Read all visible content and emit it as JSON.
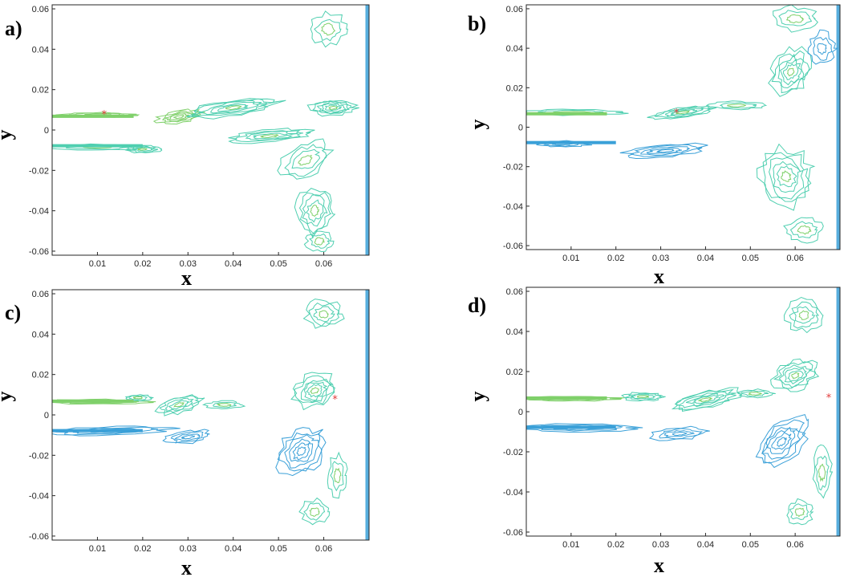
{
  "chart_data": [
    {
      "type": "contour",
      "panel_label": "a)",
      "xlabel": "x",
      "ylabel": "y",
      "xlim": [
        0.0,
        0.07
      ],
      "ylim": [
        -0.062,
        0.062
      ],
      "xticks": [
        "0.01",
        "0.02",
        "0.03",
        "0.04",
        "0.05",
        "0.06"
      ],
      "yticks": [
        "0.06",
        "0.04",
        "0.02",
        "0",
        "-0.02",
        "-0.04",
        "-0.06"
      ],
      "marker": {
        "x": 0.0115,
        "y": 0.0075,
        "color": "#e23a3a"
      },
      "colors": [
        "#4fcfb0",
        "#3aa0d8",
        "#7fd06a",
        "#c8d84a"
      ],
      "grid": false
    },
    {
      "type": "contour",
      "panel_label": "b)",
      "xlabel": "x",
      "ylabel": "y",
      "xlim": [
        0.0,
        0.07
      ],
      "ylim": [
        -0.062,
        0.062
      ],
      "xticks": [
        "0.01",
        "0.02",
        "0.03",
        "0.04",
        "0.05",
        "0.06"
      ],
      "yticks": [
        "0.06",
        "0.04",
        "0.02",
        "0",
        "-0.02",
        "-0.04",
        "-0.06"
      ],
      "marker": {
        "x": 0.0335,
        "y": 0.0072,
        "color": "#e23a3a"
      },
      "colors": [
        "#4fcfb0",
        "#3aa0d8",
        "#7fd06a",
        "#c8d84a"
      ],
      "grid": false
    },
    {
      "type": "contour",
      "panel_label": "c)",
      "xlabel": "x",
      "ylabel": "y",
      "xlim": [
        0.0,
        0.07
      ],
      "ylim": [
        -0.062,
        0.062
      ],
      "xticks": [
        "0.01",
        "0.02",
        "0.03",
        "0.04",
        "0.05",
        "0.06"
      ],
      "yticks": [
        "0.06",
        "0.04",
        "0.02",
        "0",
        "-0.02",
        "-0.04",
        "-0.06"
      ],
      "marker": {
        "x": 0.0625,
        "y": 0.0075,
        "color": "#e23a3a"
      },
      "colors": [
        "#4fcfb0",
        "#3aa0d8",
        "#7fd06a",
        "#c8d84a"
      ],
      "grid": false
    },
    {
      "type": "contour",
      "panel_label": "d)",
      "xlabel": "x",
      "ylabel": "y",
      "xlim": [
        0.0,
        0.07
      ],
      "ylim": [
        -0.062,
        0.062
      ],
      "xticks": [
        "0.01",
        "0.02",
        "0.03",
        "0.04",
        "0.05",
        "0.06"
      ],
      "yticks": [
        "0.06",
        "0.04",
        "0.02",
        "0",
        "-0.02",
        "-0.04",
        "-0.06"
      ],
      "marker": {
        "x": 0.0675,
        "y": 0.0068,
        "color": "#e23a3a"
      },
      "colors": [
        "#4fcfb0",
        "#3aa0d8",
        "#7fd06a",
        "#c8d84a"
      ],
      "grid": false
    }
  ]
}
